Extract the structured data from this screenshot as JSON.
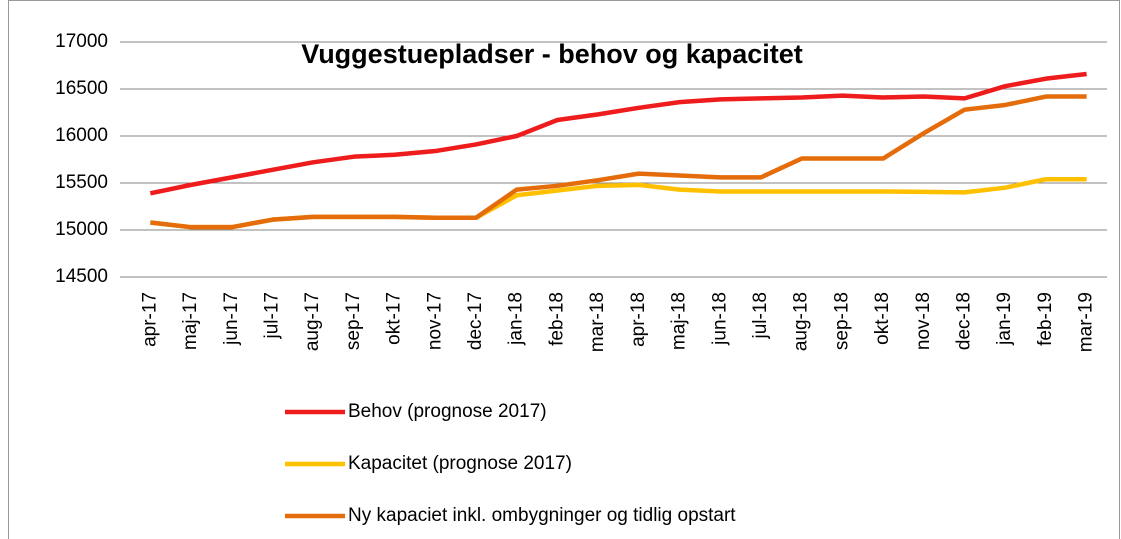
{
  "chart_data": {
    "type": "line",
    "title": "Vuggestuepladser - behov og kapacitet",
    "categories": [
      "apr-17",
      "maj-17",
      "jun-17",
      "jul-17",
      "aug-17",
      "sep-17",
      "okt-17",
      "nov-17",
      "dec-17",
      "jan-18",
      "feb-18",
      "mar-18",
      "apr-18",
      "maj-18",
      "jun-18",
      "jul-18",
      "aug-18",
      "sep-18",
      "okt-18",
      "nov-18",
      "dec-18",
      "jan-19",
      "feb-19",
      "mar-19"
    ],
    "series": [
      {
        "name": "Behov (prognose 2017)",
        "color": "#ee1c1c",
        "values": [
          15390,
          15480,
          15560,
          15640,
          15720,
          15780,
          15800,
          15840,
          15910,
          16000,
          16170,
          16230,
          16300,
          16360,
          16390,
          16400,
          16410,
          16430,
          16410,
          16420,
          16400,
          16530,
          16610,
          16660
        ]
      },
      {
        "name": "Kapacitet (prognose 2017)",
        "color": "#ffc000",
        "values": [
          15080,
          15030,
          15030,
          15110,
          15140,
          15140,
          15140,
          15130,
          15130,
          15370,
          15420,
          15470,
          15480,
          15430,
          15410,
          15410,
          15410,
          15410,
          15410,
          15405,
          15400,
          15450,
          15540,
          15540
        ]
      },
      {
        "name": "Ny  kapaciet inkl. ombygninger og tidlig opstart",
        "color": "#e46c0a",
        "values": [
          15080,
          15030,
          15030,
          15110,
          15140,
          15140,
          15140,
          15130,
          15130,
          15430,
          15470,
          15530,
          15600,
          15580,
          15560,
          15560,
          15760,
          15760,
          15760,
          16030,
          16280,
          16330,
          16420,
          16420
        ]
      }
    ],
    "ylim": [
      14500,
      17000
    ],
    "yticks": [
      14500,
      15000,
      15500,
      16000,
      16500,
      17000
    ],
    "grid": true,
    "legend": "bottom"
  }
}
